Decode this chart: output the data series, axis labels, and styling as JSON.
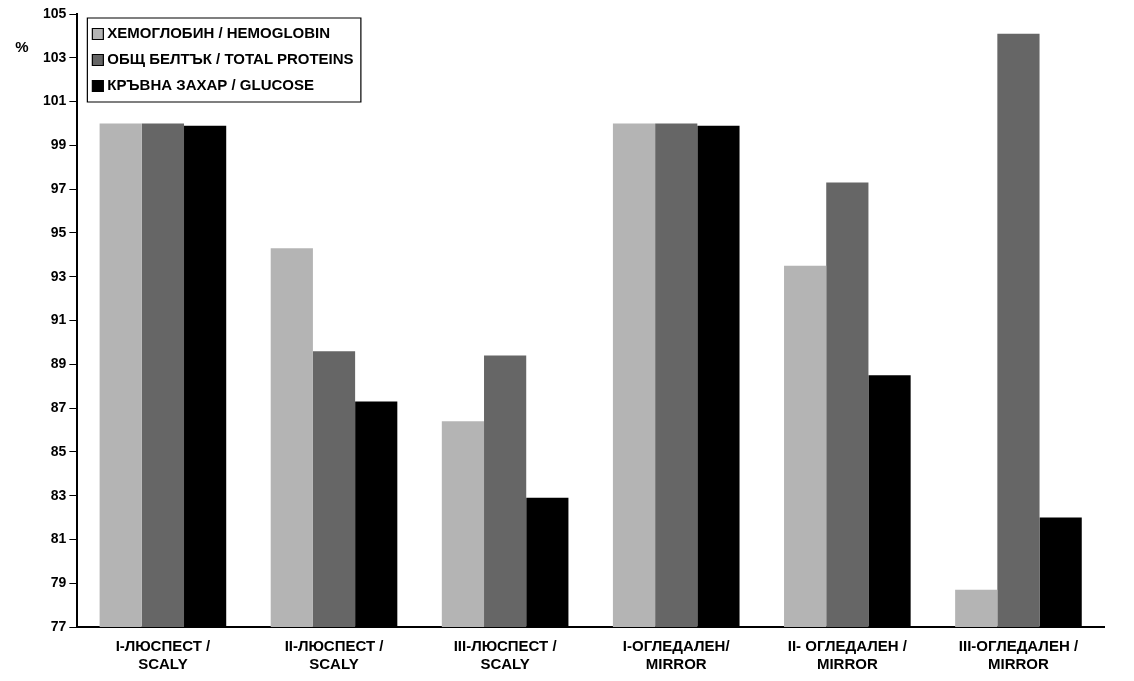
{
  "chart_data": {
    "type": "bar",
    "ylabel": "%",
    "categories": [
      "I-ЛЮСПЕСТ / SCALY",
      "II-ЛЮСПЕСТ / SCALY",
      "III-ЛЮСПЕСТ / SCALY",
      "I-ОГЛЕДАЛЕН/ MIRROR",
      "II- ОГЛЕДАЛЕН / MIRROR",
      "III-ОГЛЕДАЛЕН / MIRROR"
    ],
    "series": [
      {
        "name": "ХЕМОГЛОБИН / HEMOGLOBIN",
        "color": "#b4b4b4",
        "values": [
          100,
          94.3,
          86.4,
          100,
          93.5,
          78.7
        ]
      },
      {
        "name": "ОБЩ БЕЛТЪК / TOTAL PROTEINS",
        "color": "#666666",
        "values": [
          100,
          89.6,
          89.4,
          100,
          97.3,
          104.1
        ]
      },
      {
        "name": "КРЪВНА ЗАХАР / GLUCOSE",
        "color": "#000000",
        "values": [
          99.9,
          87.3,
          82.9,
          99.9,
          88.5,
          82.0
        ]
      }
    ],
    "ylim": [
      77,
      105
    ],
    "yticks": [
      77,
      79,
      81,
      83,
      85,
      87,
      89,
      91,
      93,
      95,
      97,
      99,
      101,
      103,
      105
    ],
    "grid": false,
    "legend": "top left"
  }
}
